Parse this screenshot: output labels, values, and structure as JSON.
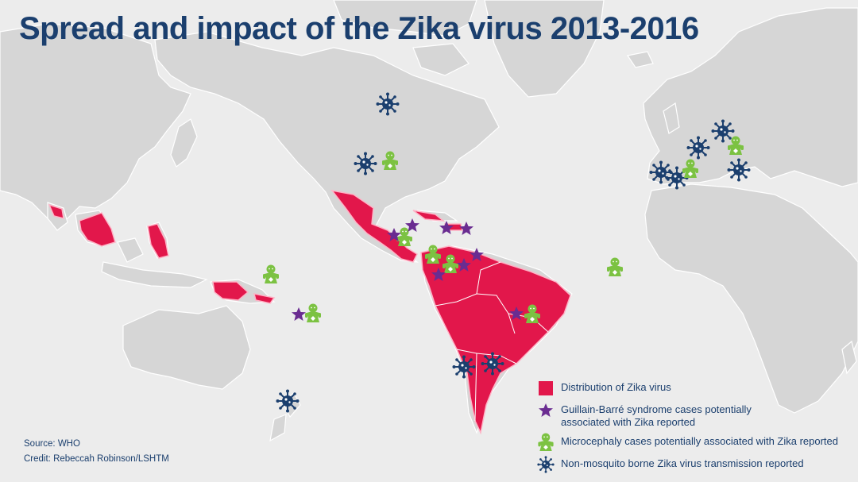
{
  "title": "Spread and impact of the Zika virus 2013-2016",
  "colors": {
    "background": "#ececec",
    "land": "#d6d6d6",
    "zika_distribution": "#e2174b",
    "guillain_barre": "#6a2c91",
    "microcephaly": "#7cc242",
    "transmission": "#1b3f6e",
    "text": "#1b3f6e"
  },
  "legend": [
    {
      "symbol": "red-square-icon",
      "label": "Distribution of Zika virus"
    },
    {
      "symbol": "purple-star-icon",
      "label_line1": "Guillain-Barré syndrome cases potentially",
      "label_line2": "associated with Zika reported"
    },
    {
      "symbol": "green-baby-icon",
      "label": "Microcephaly cases potentially associated with Zika reported"
    },
    {
      "symbol": "virus-icon",
      "label": "Non-mosquito borne Zika virus transmission reported"
    }
  ],
  "source": "Source: WHO",
  "credit": "Credit: Rebeccah Robinson/LSHTM"
}
